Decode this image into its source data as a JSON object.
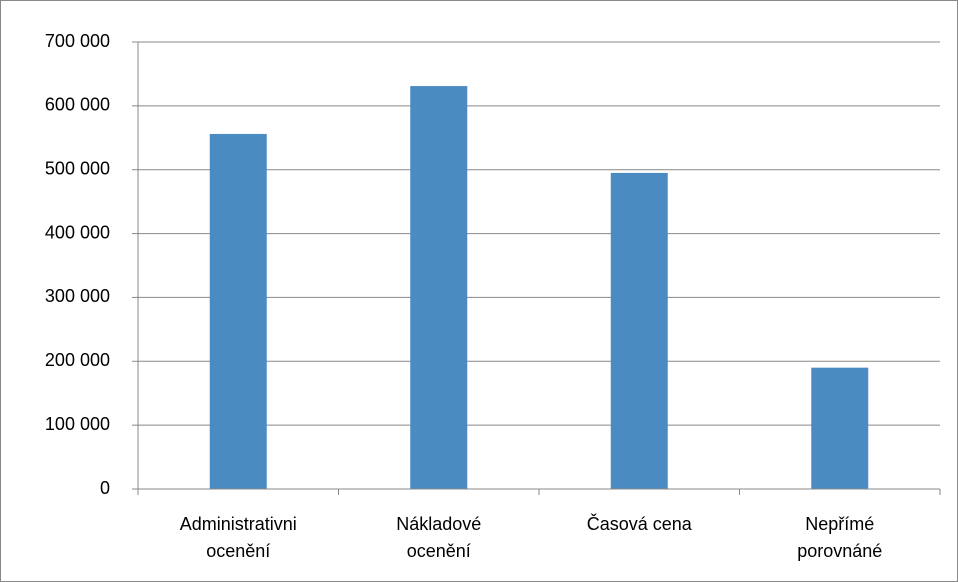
{
  "chart_data": {
    "type": "bar",
    "categories": [
      "Administrativni ocenění",
      "Nákladové ocenění",
      "Časová cena",
      "Nepřímé porovnáné"
    ],
    "values": [
      556000,
      631000,
      495000,
      190000
    ],
    "color": "#4a8bc2",
    "ylim": [
      0,
      700000
    ],
    "yticks": [
      0,
      {
        "value": 100000,
        "label": "100 000"
      },
      {
        "value": 200000,
        "label": "200 000"
      },
      {
        "value": 300000,
        "label": "300 000"
      },
      {
        "value": 400000,
        "label": "400 000"
      },
      {
        "value": 500000,
        "label": "500 000"
      },
      {
        "value": 600000,
        "label": "600 000"
      },
      {
        "value": 700000,
        "label": "700 000"
      }
    ],
    "grid": true
  }
}
